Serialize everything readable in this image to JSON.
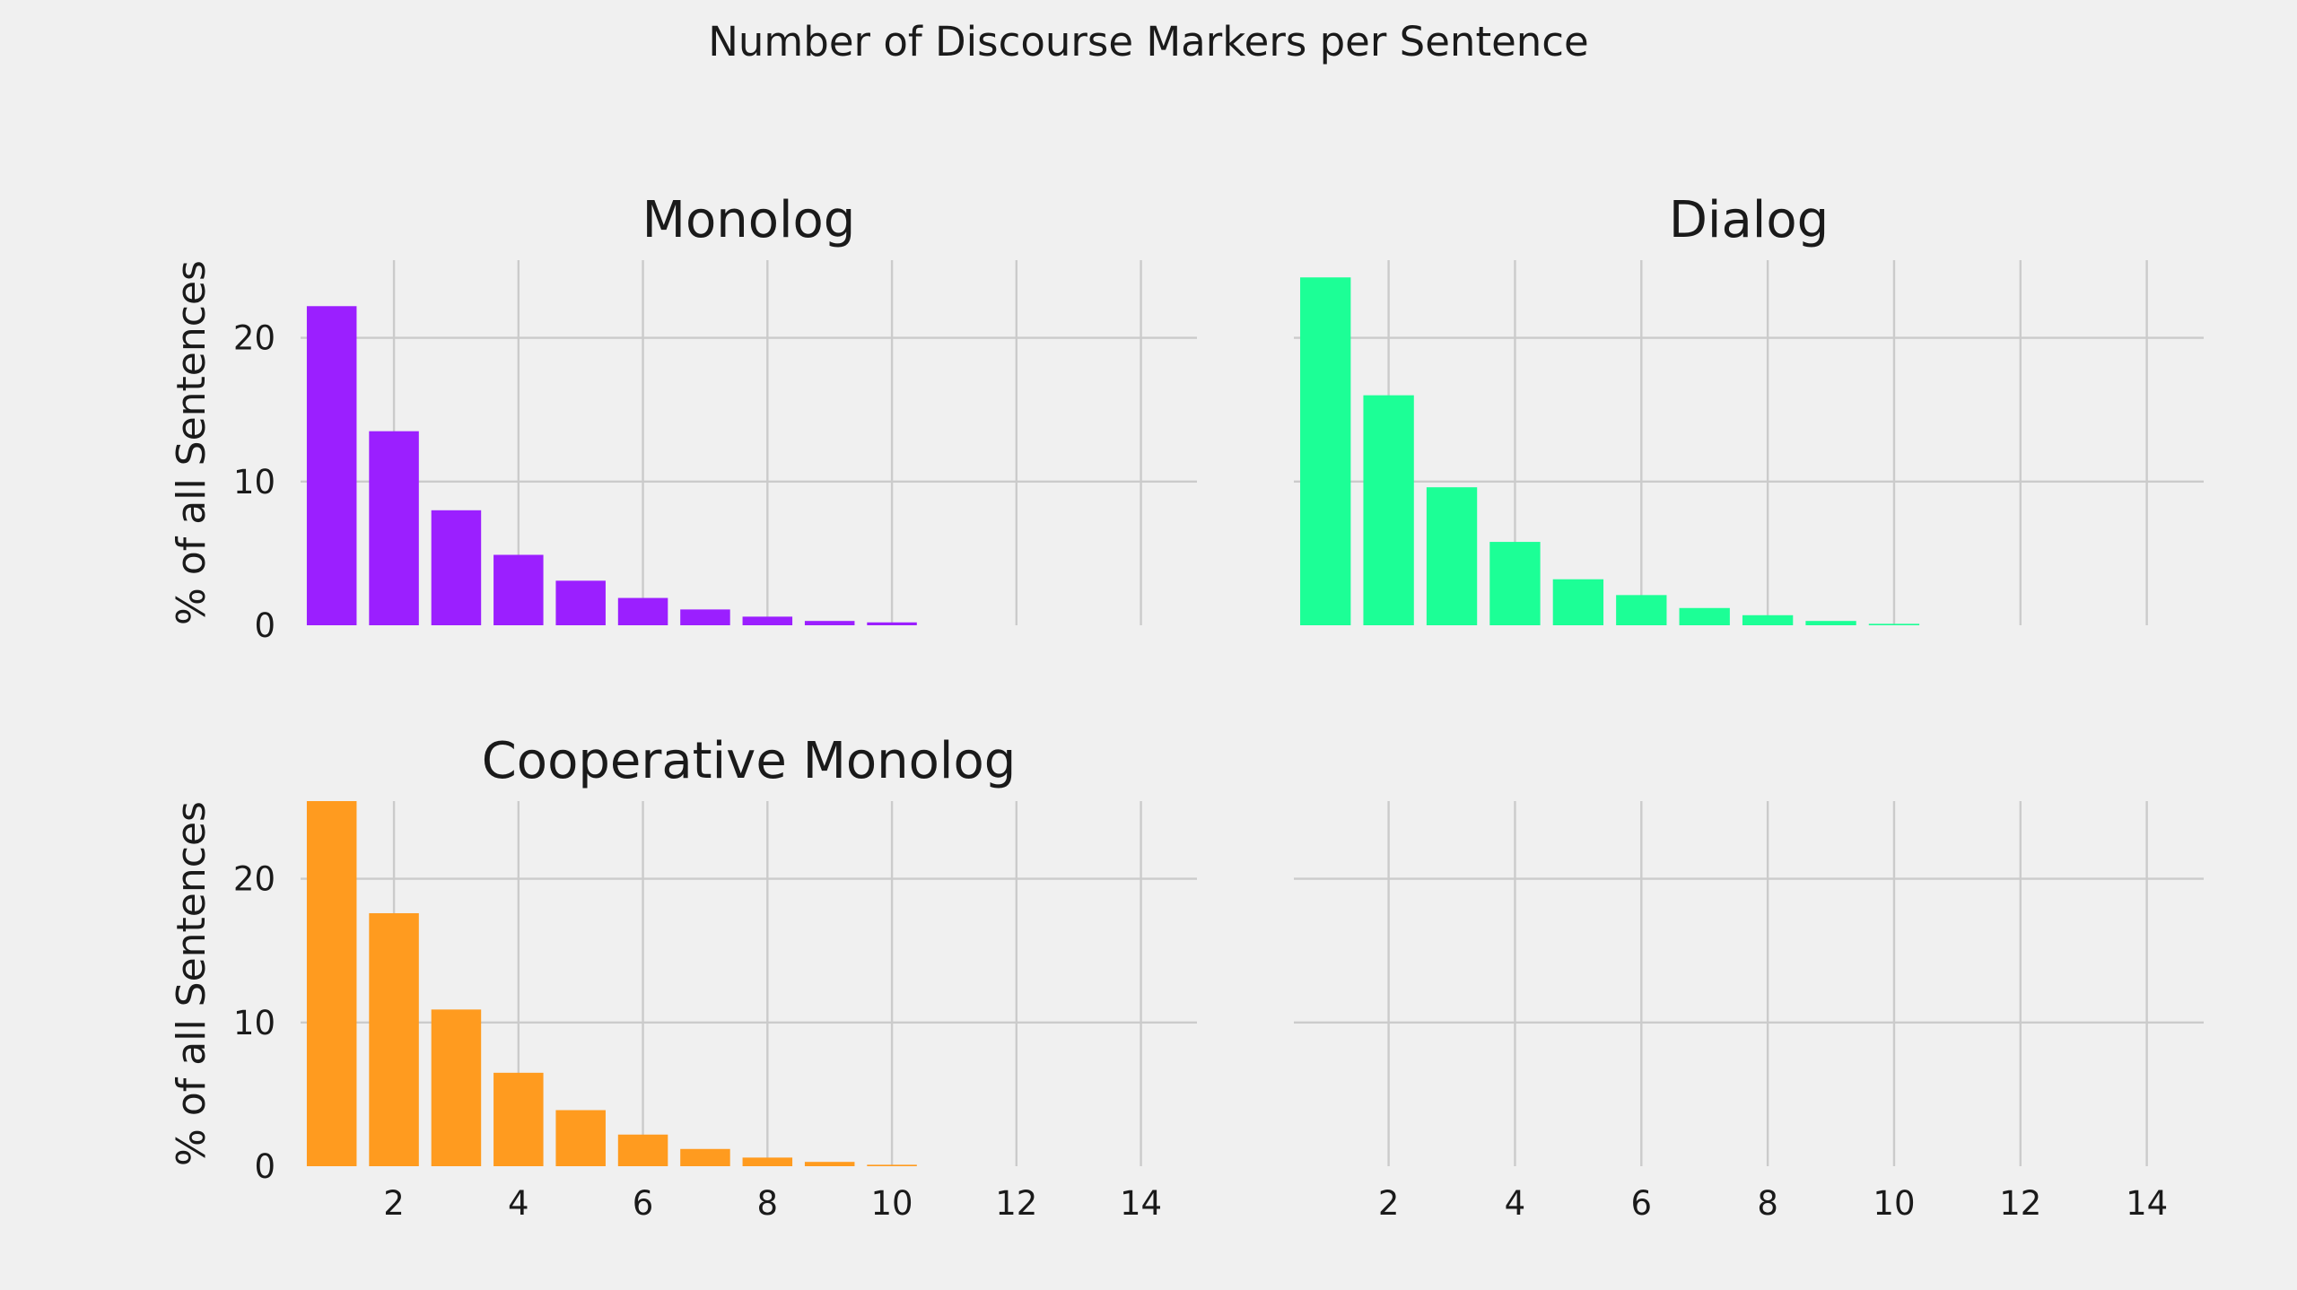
{
  "figure_title": "Number of Discourse Markers per Sentence",
  "chart_data": [
    {
      "type": "bar",
      "title": "Monolog",
      "ylabel": "% of all Sentences",
      "color": "#9b1fff",
      "x": [
        1,
        2,
        3,
        4,
        5,
        6,
        7,
        8,
        9,
        10
      ],
      "values": [
        22.2,
        13.5,
        8.0,
        4.9,
        3.1,
        1.9,
        1.1,
        0.6,
        0.3,
        0.2
      ],
      "xlim": [
        0.5,
        14.9
      ],
      "ylim": [
        0,
        25.4
      ],
      "xticks": [
        2,
        4,
        6,
        8,
        10,
        12,
        14
      ],
      "yticks": [
        0,
        10,
        20
      ],
      "show_xticklabels": false,
      "show_yticklabels": true,
      "grid": true
    },
    {
      "type": "bar",
      "title": "Dialog",
      "ylabel": "",
      "color": "#1cff96",
      "x": [
        1,
        2,
        3,
        4,
        5,
        6,
        7,
        8,
        9,
        10
      ],
      "values": [
        24.2,
        16.0,
        9.6,
        5.8,
        3.2,
        2.1,
        1.2,
        0.7,
        0.3,
        0.1
      ],
      "xlim": [
        0.5,
        14.9
      ],
      "ylim": [
        0,
        25.4
      ],
      "xticks": [
        2,
        4,
        6,
        8,
        10,
        12,
        14
      ],
      "yticks": [
        0,
        10,
        20
      ],
      "show_xticklabels": false,
      "show_yticklabels": false,
      "grid": true
    },
    {
      "type": "bar",
      "title": "Cooperative Monolog",
      "ylabel": "% of all Sentences",
      "color": "#ff9b1f",
      "x": [
        1,
        2,
        3,
        4,
        5,
        6,
        7,
        8,
        9,
        10
      ],
      "values": [
        25.4,
        17.6,
        10.9,
        6.5,
        3.9,
        2.2,
        1.2,
        0.6,
        0.3,
        0.1
      ],
      "xlim": [
        0.5,
        14.9
      ],
      "ylim": [
        0,
        25.4
      ],
      "xticks": [
        2,
        4,
        6,
        8,
        10,
        12,
        14
      ],
      "yticks": [
        0,
        10,
        20
      ],
      "show_xticklabels": true,
      "show_yticklabels": true,
      "grid": true
    },
    {
      "type": "bar",
      "title": "",
      "ylabel": "",
      "color": "#1f9bff",
      "x": [],
      "values": [],
      "xlim": [
        0.5,
        14.9
      ],
      "ylim": [
        0,
        25.4
      ],
      "xticks": [
        2,
        4,
        6,
        8,
        10,
        12,
        14
      ],
      "yticks": [
        0,
        10,
        20
      ],
      "show_xticklabels": true,
      "show_yticklabels": false,
      "grid": true
    }
  ]
}
